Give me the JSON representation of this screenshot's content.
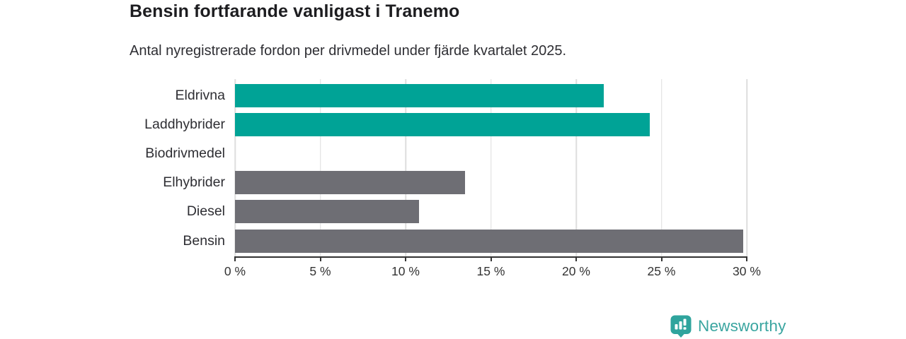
{
  "header": {
    "title": "Bensin fortfarande vanligast i Tranemo",
    "subtitle": "Antal nyregistrerade fordon per drivmedel under fjärde kvartalet 2025."
  },
  "chart_data": {
    "type": "bar",
    "orientation": "horizontal",
    "title": "Bensin fortfarande vanligast i Tranemo",
    "subtitle": "Antal nyregistrerade fordon per drivmedel under fjärde kvartalet 2025.",
    "categories": [
      "Eldrivna",
      "Laddhybrider",
      "Biodrivmedel",
      "Elhybrider",
      "Diesel",
      "Bensin"
    ],
    "values": [
      21.6,
      24.3,
      0,
      13.5,
      10.8,
      29.8
    ],
    "unit": "%",
    "xlim": [
      0,
      30
    ],
    "x_ticks": [
      0,
      5,
      10,
      15,
      20,
      25,
      30
    ],
    "x_tick_labels": [
      "0 %",
      "5 %",
      "10 %",
      "15 %",
      "20 %",
      "25 %",
      "30 %"
    ],
    "bar_colors": [
      "#00a396",
      "#00a396",
      "#00a396",
      "#6e6e74",
      "#6e6e74",
      "#6e6e74"
    ],
    "palette": {
      "highlight": "#00a396",
      "default": "#6e6e74",
      "gridline": "#dedede",
      "axis": "#333333",
      "text": "#2e2e33"
    },
    "grid": true,
    "legend": false
  },
  "footer": {
    "brand": "Newsworthy",
    "brand_color": "#3aa5a0"
  }
}
